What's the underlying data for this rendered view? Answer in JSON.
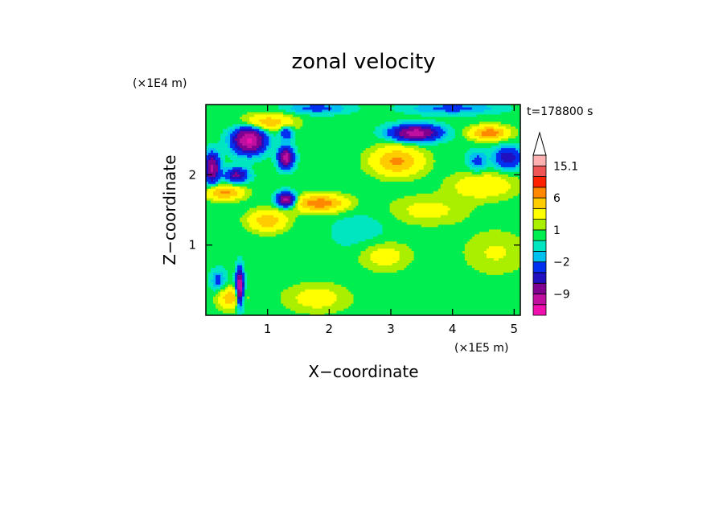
{
  "chart_data": {
    "type": "heatmap",
    "title": "zonal velocity",
    "xlabel": "X−coordinate",
    "ylabel": "Z−coordinate",
    "x_unit": "(×1E5 m)",
    "y_unit": "(×1E4 m)",
    "time_label": "t=178800 s",
    "xlim": [
      0,
      5.1
    ],
    "ylim": [
      0,
      3.0
    ],
    "x_ticks": [
      "1",
      "2",
      "3",
      "4",
      "5"
    ],
    "y_ticks": [
      "1",
      "2"
    ],
    "x_tick_values": [
      1,
      2,
      3,
      4,
      5
    ],
    "y_tick_values": [
      1,
      2
    ],
    "colorbar": {
      "levels": [
        -15,
        -12,
        -9,
        -6,
        -4,
        -2,
        -1,
        0,
        1,
        2,
        4,
        6,
        9,
        12,
        15.1
      ],
      "colors": [
        "#f010b0",
        "#c010a0",
        "#800090",
        "#2010c0",
        "#0030f0",
        "#00c0f0",
        "#00e6c0",
        "#00ee50",
        "#aaee00",
        "#ffff00",
        "#ffcc00",
        "#ff8800",
        "#ff2200",
        "#ee5555",
        "#ffb0b0"
      ],
      "labels": [
        {
          "text": "15.1",
          "value": 15.1
        },
        {
          "text": "6",
          "value": 6
        },
        {
          "text": "1",
          "value": 1
        },
        {
          "text": "−2",
          "value": -2
        },
        {
          "text": "−9",
          "value": -9
        }
      ],
      "extend": "max"
    },
    "features": [
      {
        "x": 0.7,
        "z": 2.5,
        "sx": 0.25,
        "sz": 0.18,
        "amp": -13
      },
      {
        "x": 1.3,
        "z": 2.25,
        "sx": 0.12,
        "sz": 0.14,
        "amp": -11
      },
      {
        "x": 0.5,
        "z": 2.0,
        "sx": 0.18,
        "sz": 0.1,
        "amp": -7
      },
      {
        "x": 1.3,
        "z": 1.65,
        "sx": 0.15,
        "sz": 0.1,
        "amp": -11
      },
      {
        "x": 1.3,
        "z": 2.6,
        "sx": 0.1,
        "sz": 0.1,
        "amp": -5
      },
      {
        "x": 0.1,
        "z": 2.1,
        "sx": 0.12,
        "sz": 0.2,
        "amp": -10
      },
      {
        "x": 3.4,
        "z": 2.6,
        "sx": 0.38,
        "sz": 0.11,
        "amp": -11
      },
      {
        "x": 4.9,
        "z": 2.25,
        "sx": 0.22,
        "sz": 0.15,
        "amp": -6
      },
      {
        "x": 0.55,
        "z": 0.4,
        "sx": 0.06,
        "sz": 0.25,
        "amp": -13
      },
      {
        "x": 0.2,
        "z": 0.5,
        "sx": 0.12,
        "sz": 0.15,
        "amp": -3
      },
      {
        "x": 1.0,
        "z": 2.75,
        "sx": 0.4,
        "sz": 0.12,
        "amp": 5
      },
      {
        "x": 0.3,
        "z": 1.75,
        "sx": 0.3,
        "sz": 0.1,
        "amp": 6
      },
      {
        "x": 1.85,
        "z": 1.6,
        "sx": 0.42,
        "sz": 0.12,
        "amp": 7
      },
      {
        "x": 1.0,
        "z": 1.35,
        "sx": 0.3,
        "sz": 0.15,
        "amp": 5
      },
      {
        "x": 3.1,
        "z": 2.2,
        "sx": 0.4,
        "sz": 0.2,
        "amp": 6
      },
      {
        "x": 4.6,
        "z": 2.6,
        "sx": 0.3,
        "sz": 0.1,
        "amp": 7
      },
      {
        "x": 0.4,
        "z": 0.25,
        "sx": 0.2,
        "sz": 0.15,
        "amp": 5
      },
      {
        "x": 1.8,
        "z": 0.25,
        "sx": 0.5,
        "sz": 0.2,
        "amp": 2.5
      },
      {
        "x": 2.9,
        "z": 0.85,
        "sx": 0.4,
        "sz": 0.2,
        "amp": 2.5
      },
      {
        "x": 4.7,
        "z": 0.9,
        "sx": 0.5,
        "sz": 0.3,
        "amp": 1.8
      },
      {
        "x": 3.6,
        "z": 1.5,
        "sx": 0.6,
        "sz": 0.2,
        "amp": 2.2
      },
      {
        "x": 4.5,
        "z": 1.85,
        "sx": 0.5,
        "sz": 0.18,
        "amp": 3.5
      },
      {
        "x": 2.5,
        "z": 1.2,
        "sx": 0.5,
        "sz": 0.3,
        "amp": -1.0
      },
      {
        "x": 1.8,
        "z": 2.95,
        "sx": 0.5,
        "sz": 0.08,
        "amp": -3
      },
      {
        "x": 4.0,
        "z": 2.95,
        "sx": 0.7,
        "sz": 0.08,
        "amp": -3
      },
      {
        "x": 4.4,
        "z": 2.2,
        "sx": 0.15,
        "sz": 0.15,
        "amp": -3
      }
    ]
  }
}
